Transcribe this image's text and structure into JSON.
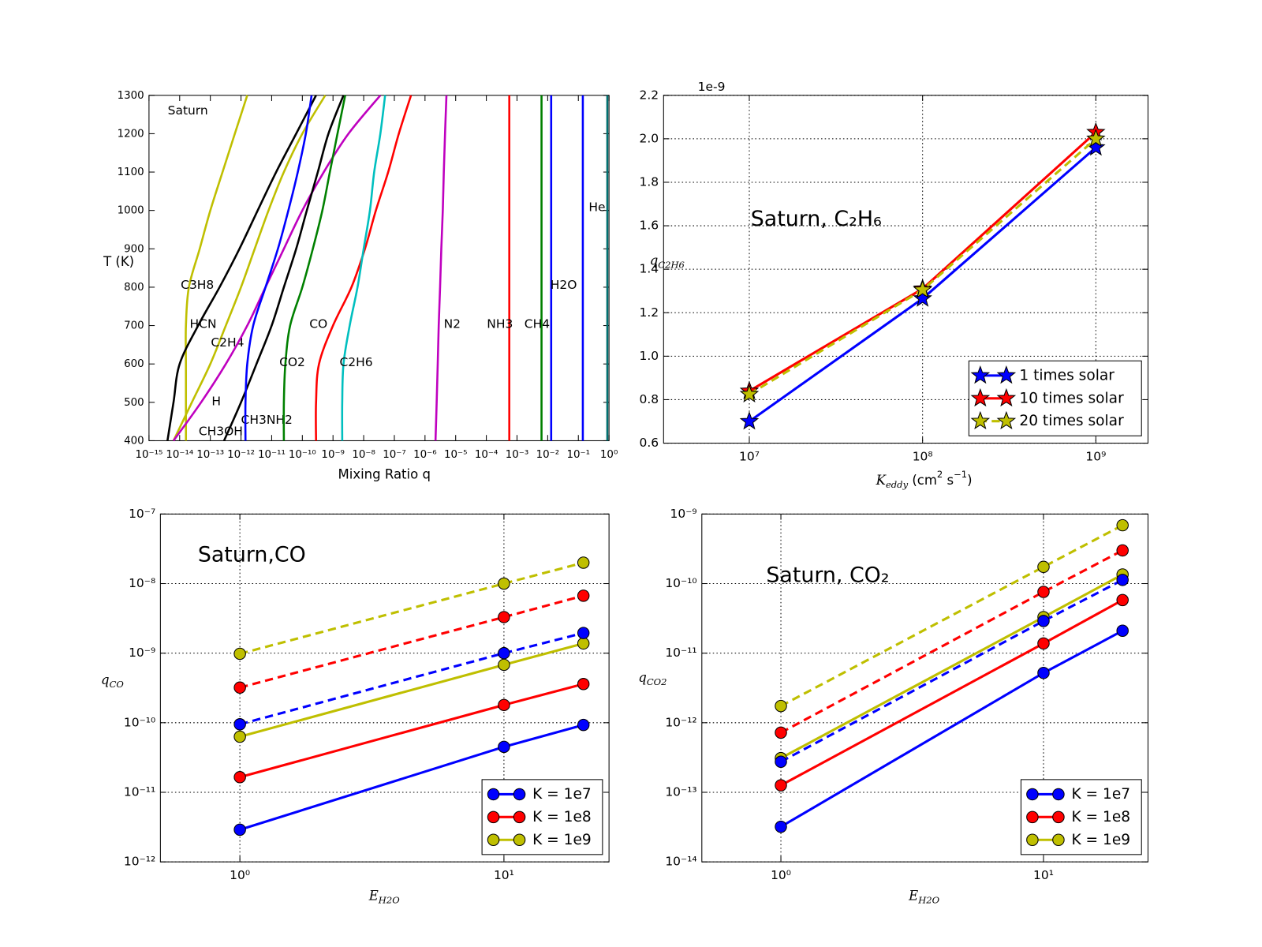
{
  "chart_data": [
    {
      "type": "profile",
      "annotation": "Saturn",
      "xscale": "log",
      "xlabel": "Mixing Ratio q",
      "ylabel": "T (K)",
      "y": [
        400,
        500,
        600,
        700,
        800,
        900,
        1000,
        1100,
        1200,
        1300
      ],
      "xlim": [
        1e-15,
        1
      ],
      "ylim": [
        400,
        1300
      ],
      "xticks": [
        {
          "value": 1e-15,
          "label": "10⁻¹⁵"
        },
        {
          "value": 1e-14,
          "label": "10⁻¹⁴"
        },
        {
          "value": 1e-13,
          "label": "10⁻¹³"
        },
        {
          "value": 1e-12,
          "label": "10⁻¹²"
        },
        {
          "value": 1e-11,
          "label": "10⁻¹¹"
        },
        {
          "value": 1e-10,
          "label": "10⁻¹⁰"
        },
        {
          "value": 1e-09,
          "label": "10⁻⁹"
        },
        {
          "value": 1e-08,
          "label": "10⁻⁸"
        },
        {
          "value": 1e-07,
          "label": "10⁻⁷"
        },
        {
          "value": 1e-06,
          "label": "10⁻⁶"
        },
        {
          "value": 1e-05,
          "label": "10⁻⁵"
        },
        {
          "value": 0.0001,
          "label": "10⁻⁴"
        },
        {
          "value": 0.001,
          "label": "10⁻³"
        },
        {
          "value": 0.01,
          "label": "10⁻²"
        },
        {
          "value": 0.1,
          "label": "10⁻¹"
        },
        {
          "value": 1,
          "label": "10⁰"
        }
      ],
      "yticks": [
        400,
        500,
        600,
        700,
        800,
        900,
        1000,
        1100,
        1200,
        1300
      ],
      "grid": false,
      "series": [
        {
          "name": "C3H8",
          "color": "#bfbf00",
          "values": [
            1.6e-14,
            1.6e-14,
            1.6e-14,
            1.6e-14,
            2e-14,
            4.5e-14,
            1e-13,
            2.5e-13,
            6.3e-13,
            1.6e-12
          ]
        },
        {
          "name": "HCN",
          "color": "#000000",
          "values": [
            4e-15,
            6.3e-15,
            1e-14,
            4e-14,
            2e-13,
            8.9e-13,
            3.5e-12,
            1.4e-11,
            6.3e-11,
            2.8e-10
          ]
        },
        {
          "name": "C2H4",
          "color": "#bfbf00",
          "values": [
            6.3e-15,
            2.5e-14,
            1e-13,
            3.2e-13,
            1e-12,
            2.8e-12,
            7.9e-12,
            2.5e-11,
            1e-10,
            5.6e-10
          ]
        },
        {
          "name": "H",
          "color": "#bf00bf",
          "values": [
            6.3e-15,
            5e-14,
            3.2e-13,
            1.6e-12,
            6.3e-12,
            2.5e-11,
            1e-10,
            5e-10,
            3.2e-09,
            3.5e-08
          ]
        },
        {
          "name": "CH3NH2",
          "color": "#000000",
          "values": [
            2.8e-13,
            1e-12,
            3.2e-12,
            1e-11,
            2.5e-11,
            6.3e-11,
            1.4e-10,
            3.2e-10,
            7.1e-10,
            2.2e-09
          ]
        },
        {
          "name": "CH3OH",
          "color": "#0000ff",
          "values": [
            1.4e-12,
            1.4e-12,
            1.6e-12,
            2.5e-12,
            6.3e-12,
            1.6e-11,
            3.5e-11,
            7.1e-11,
            1.3e-10,
            2e-10
          ]
        },
        {
          "name": "CO2",
          "color": "#008000",
          "values": [
            2.5e-11,
            2.5e-11,
            2.8e-11,
            4e-11,
            1e-10,
            2.2e-10,
            4.5e-10,
            7.9e-10,
            1.4e-09,
            2.5e-09
          ]
        },
        {
          "name": "CO",
          "color": "#ff0000",
          "values": [
            2.8e-10,
            2.8e-10,
            3.5e-10,
            1e-09,
            4e-09,
            1.1e-08,
            2.5e-08,
            6.3e-08,
            1.4e-07,
            3.5e-07
          ]
        },
        {
          "name": "C2H6",
          "color": "#00bfbf",
          "values": [
            2e-09,
            2e-09,
            2.2e-09,
            3.5e-09,
            6.3e-09,
            1e-08,
            1.6e-08,
            2.2e-08,
            3.5e-08,
            5e-08
          ]
        },
        {
          "name": "N2",
          "color": "#bf00bf",
          "values": [
            2.2e-06,
            2.4e-06,
            2.6e-06,
            2.8e-06,
            3.1e-06,
            3.4e-06,
            3.8e-06,
            4.1e-06,
            4.5e-06,
            5e-06
          ]
        },
        {
          "name": "NH3",
          "color": "#ff0000",
          "values": [
            0.00056,
            0.00056,
            0.00056,
            0.00056,
            0.00056,
            0.00056,
            0.00056,
            0.00056,
            0.00056,
            0.00056
          ]
        },
        {
          "name": "CH4",
          "color": "#008000",
          "values": [
            0.0063,
            0.0063,
            0.0063,
            0.0063,
            0.0063,
            0.0063,
            0.0063,
            0.0063,
            0.0063,
            0.0063
          ]
        },
        {
          "name": "H2O",
          "color": "#0000ff",
          "values": [
            0.013,
            0.013,
            0.013,
            0.013,
            0.013,
            0.013,
            0.013,
            0.013,
            0.013,
            0.013
          ]
        },
        {
          "name": "He",
          "color": "#0000ff",
          "values": [
            0.14,
            0.14,
            0.14,
            0.14,
            0.14,
            0.14,
            0.14,
            0.14,
            0.14,
            0.14
          ]
        },
        {
          "color": "#007070",
          "values": [
            0.88,
            0.88,
            0.88,
            0.88,
            0.88,
            0.88,
            0.88,
            0.88,
            0.88,
            0.88
          ]
        }
      ]
    },
    {
      "type": "line",
      "title": "Saturn, C₂H₆",
      "xscale": "log",
      "marker": "star",
      "legend": "lower right",
      "grid": true,
      "offset_label": "1e-9",
      "xlabel": [
        {
          "text": "K",
          "math": true
        },
        {
          "text": "eddy",
          "pos": "sub",
          "math": true
        },
        {
          "text": " (cm"
        },
        {
          "text": "2",
          "pos": "sup"
        },
        {
          "text": "  s"
        },
        {
          "text": "−1",
          "pos": "sup"
        },
        {
          "text": ")"
        }
      ],
      "ylabel": [
        {
          "text": "q",
          "math": true
        },
        {
          "text": "C2H6",
          "pos": "sub",
          "math": true
        }
      ],
      "x": [
        10000000.0,
        100000000.0,
        1000000000.0
      ],
      "xlim": [
        3200000.0,
        2000000000.0
      ],
      "ylim": [
        0.6,
        2.2
      ],
      "xticks": [
        {
          "value": 10000000.0,
          "label": "10⁷"
        },
        {
          "value": 100000000.0,
          "label": "10⁸"
        },
        {
          "value": 1000000000.0,
          "label": "10⁹"
        }
      ],
      "yticks": [
        0.6,
        0.8,
        {
          "value": 1,
          "label": "1.0"
        },
        1.2,
        1.4,
        1.6,
        1.8,
        {
          "value": 2,
          "label": "2.0"
        },
        2.2
      ],
      "series": [
        {
          "name": "1 times solar",
          "color": "#0000ff",
          "linestyle": "solid",
          "values": [
            0.7,
            1.265,
            1.96
          ]
        },
        {
          "name": "10 times solar",
          "color": "#ff0000",
          "linestyle": "solid",
          "values": [
            0.84,
            1.31,
            2.03
          ]
        },
        {
          "name": "20 times solar",
          "color": "#bfbf00",
          "linestyle": "dashed",
          "values": [
            0.825,
            1.305,
            2.0
          ]
        }
      ]
    },
    {
      "type": "line",
      "title": "Saturn,CO",
      "xscale": "log",
      "yscale": "log",
      "marker": "circle",
      "legend": "lower right",
      "grid": true,
      "xlabel": [
        {
          "text": "E",
          "math": true
        },
        {
          "text": "H2O",
          "pos": "sub",
          "math": true
        }
      ],
      "ylabel": [
        {
          "text": "q",
          "math": true
        },
        {
          "text": "CO",
          "pos": "sub",
          "math": true
        }
      ],
      "x": [
        1,
        10,
        20
      ],
      "xlim": [
        0.5,
        25
      ],
      "ylim": [
        1e-12,
        1e-07
      ],
      "xticks": [
        {
          "value": 1,
          "label": "10⁰"
        },
        {
          "value": 10,
          "label": "10¹"
        }
      ],
      "yticks": [
        {
          "value": 1e-12,
          "label": "10⁻¹²"
        },
        {
          "value": 1e-11,
          "label": "10⁻¹¹"
        },
        {
          "value": 1e-10,
          "label": "10⁻¹⁰"
        },
        {
          "value": 1e-09,
          "label": "10⁻⁹"
        },
        {
          "value": 1e-08,
          "label": "10⁻⁸"
        },
        {
          "value": 1e-07,
          "label": "10⁻⁷"
        }
      ],
      "series": [
        {
          "name": "K = 1e7",
          "color": "#0000ff",
          "linestyle": "solid",
          "values": [
            2.9e-12,
            4.5e-11,
            9.3e-11
          ]
        },
        {
          "name": "K = 1e8",
          "color": "#ff0000",
          "linestyle": "solid",
          "values": [
            1.65e-11,
            1.8e-10,
            3.6e-10
          ]
        },
        {
          "name": "K = 1e9",
          "color": "#bfbf00",
          "linestyle": "solid",
          "values": [
            6.3e-11,
            6.8e-10,
            1.38e-09
          ]
        },
        {
          "color": "#0000ff",
          "linestyle": "dashed",
          "values": [
            9.5e-11,
            1e-09,
            1.95e-09
          ]
        },
        {
          "color": "#ff0000",
          "linestyle": "dashed",
          "values": [
            3.2e-10,
            3.3e-09,
            6.7e-09
          ]
        },
        {
          "color": "#bfbf00",
          "linestyle": "dashed",
          "values": [
            9.8e-10,
            1e-08,
            2e-08
          ]
        }
      ]
    },
    {
      "type": "line",
      "title": "Saturn, CO₂",
      "xscale": "log",
      "yscale": "log",
      "marker": "circle",
      "legend": "lower right",
      "grid": true,
      "xlabel": [
        {
          "text": "E",
          "math": true
        },
        {
          "text": "H2O",
          "pos": "sub",
          "math": true
        }
      ],
      "ylabel": [
        {
          "text": "q",
          "math": true
        },
        {
          "text": "CO2",
          "pos": "sub",
          "math": true
        }
      ],
      "x": [
        1,
        10,
        20
      ],
      "xlim": [
        0.5,
        25
      ],
      "ylim": [
        1e-14,
        1e-09
      ],
      "xticks": [
        {
          "value": 1,
          "label": "10⁰"
        },
        {
          "value": 10,
          "label": "10¹"
        }
      ],
      "yticks": [
        {
          "value": 1e-14,
          "label": "10⁻¹⁴"
        },
        {
          "value": 1e-13,
          "label": "10⁻¹³"
        },
        {
          "value": 1e-12,
          "label": "10⁻¹²"
        },
        {
          "value": 1e-11,
          "label": "10⁻¹¹"
        },
        {
          "value": 1e-10,
          "label": "10⁻¹⁰"
        },
        {
          "value": 1e-09,
          "label": "10⁻⁹"
        }
      ],
      "series": [
        {
          "name": "K = 1e7",
          "color": "#0000ff",
          "linestyle": "solid",
          "values": [
            3.2e-14,
            5.2e-12,
            2.1e-11
          ]
        },
        {
          "name": "K = 1e8",
          "color": "#ff0000",
          "linestyle": "solid",
          "values": [
            1.26e-13,
            1.38e-11,
            5.8e-11
          ]
        },
        {
          "name": "K = 1e9",
          "color": "#bfbf00",
          "linestyle": "solid",
          "values": [
            3.1e-13,
            3.3e-11,
            1.35e-10
          ]
        },
        {
          "color": "#0000ff",
          "linestyle": "dashed",
          "values": [
            2.75e-13,
            2.9e-11,
            1.13e-10
          ]
        },
        {
          "color": "#ff0000",
          "linestyle": "dashed",
          "values": [
            7.2e-13,
            7.6e-11,
            3e-10
          ]
        },
        {
          "color": "#bfbf00",
          "linestyle": "dashed",
          "values": [
            1.74e-12,
            1.74e-10,
            6.9e-10
          ]
        }
      ]
    }
  ]
}
